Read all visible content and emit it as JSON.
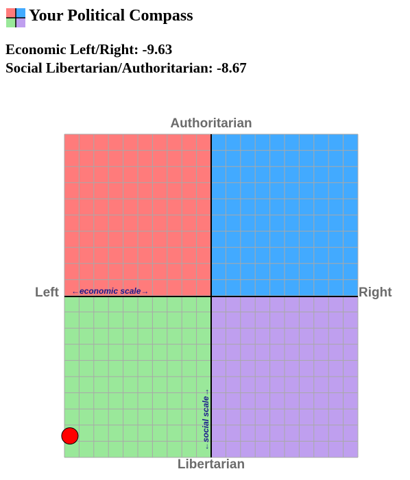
{
  "header": {
    "title": "Your Political Compass",
    "logo_icon": "compass-quadrant-icon"
  },
  "scores": {
    "economic_line": "Economic Left/Right: -9.63",
    "social_line": "Social Libertarian/Authoritarian: -8.67",
    "economic_value": -9.63,
    "social_value": -8.67
  },
  "compass": {
    "label_top": "Authoritarian",
    "label_bottom": "Libertarian",
    "label_left": "Left",
    "label_right": "Right",
    "economic_scale_text": "←economic scale→",
    "social_scale_text": "←social scale→",
    "range": [
      -10,
      10
    ],
    "grid_divisions": 20,
    "colors": {
      "auth_left": "#ff7b7b",
      "auth_right": "#42aaff",
      "lib_left": "#9ae89a",
      "lib_right": "#bf9fef",
      "grid": "#a8a8a8",
      "axis": "#000000",
      "marker": "#ff0000"
    }
  }
}
